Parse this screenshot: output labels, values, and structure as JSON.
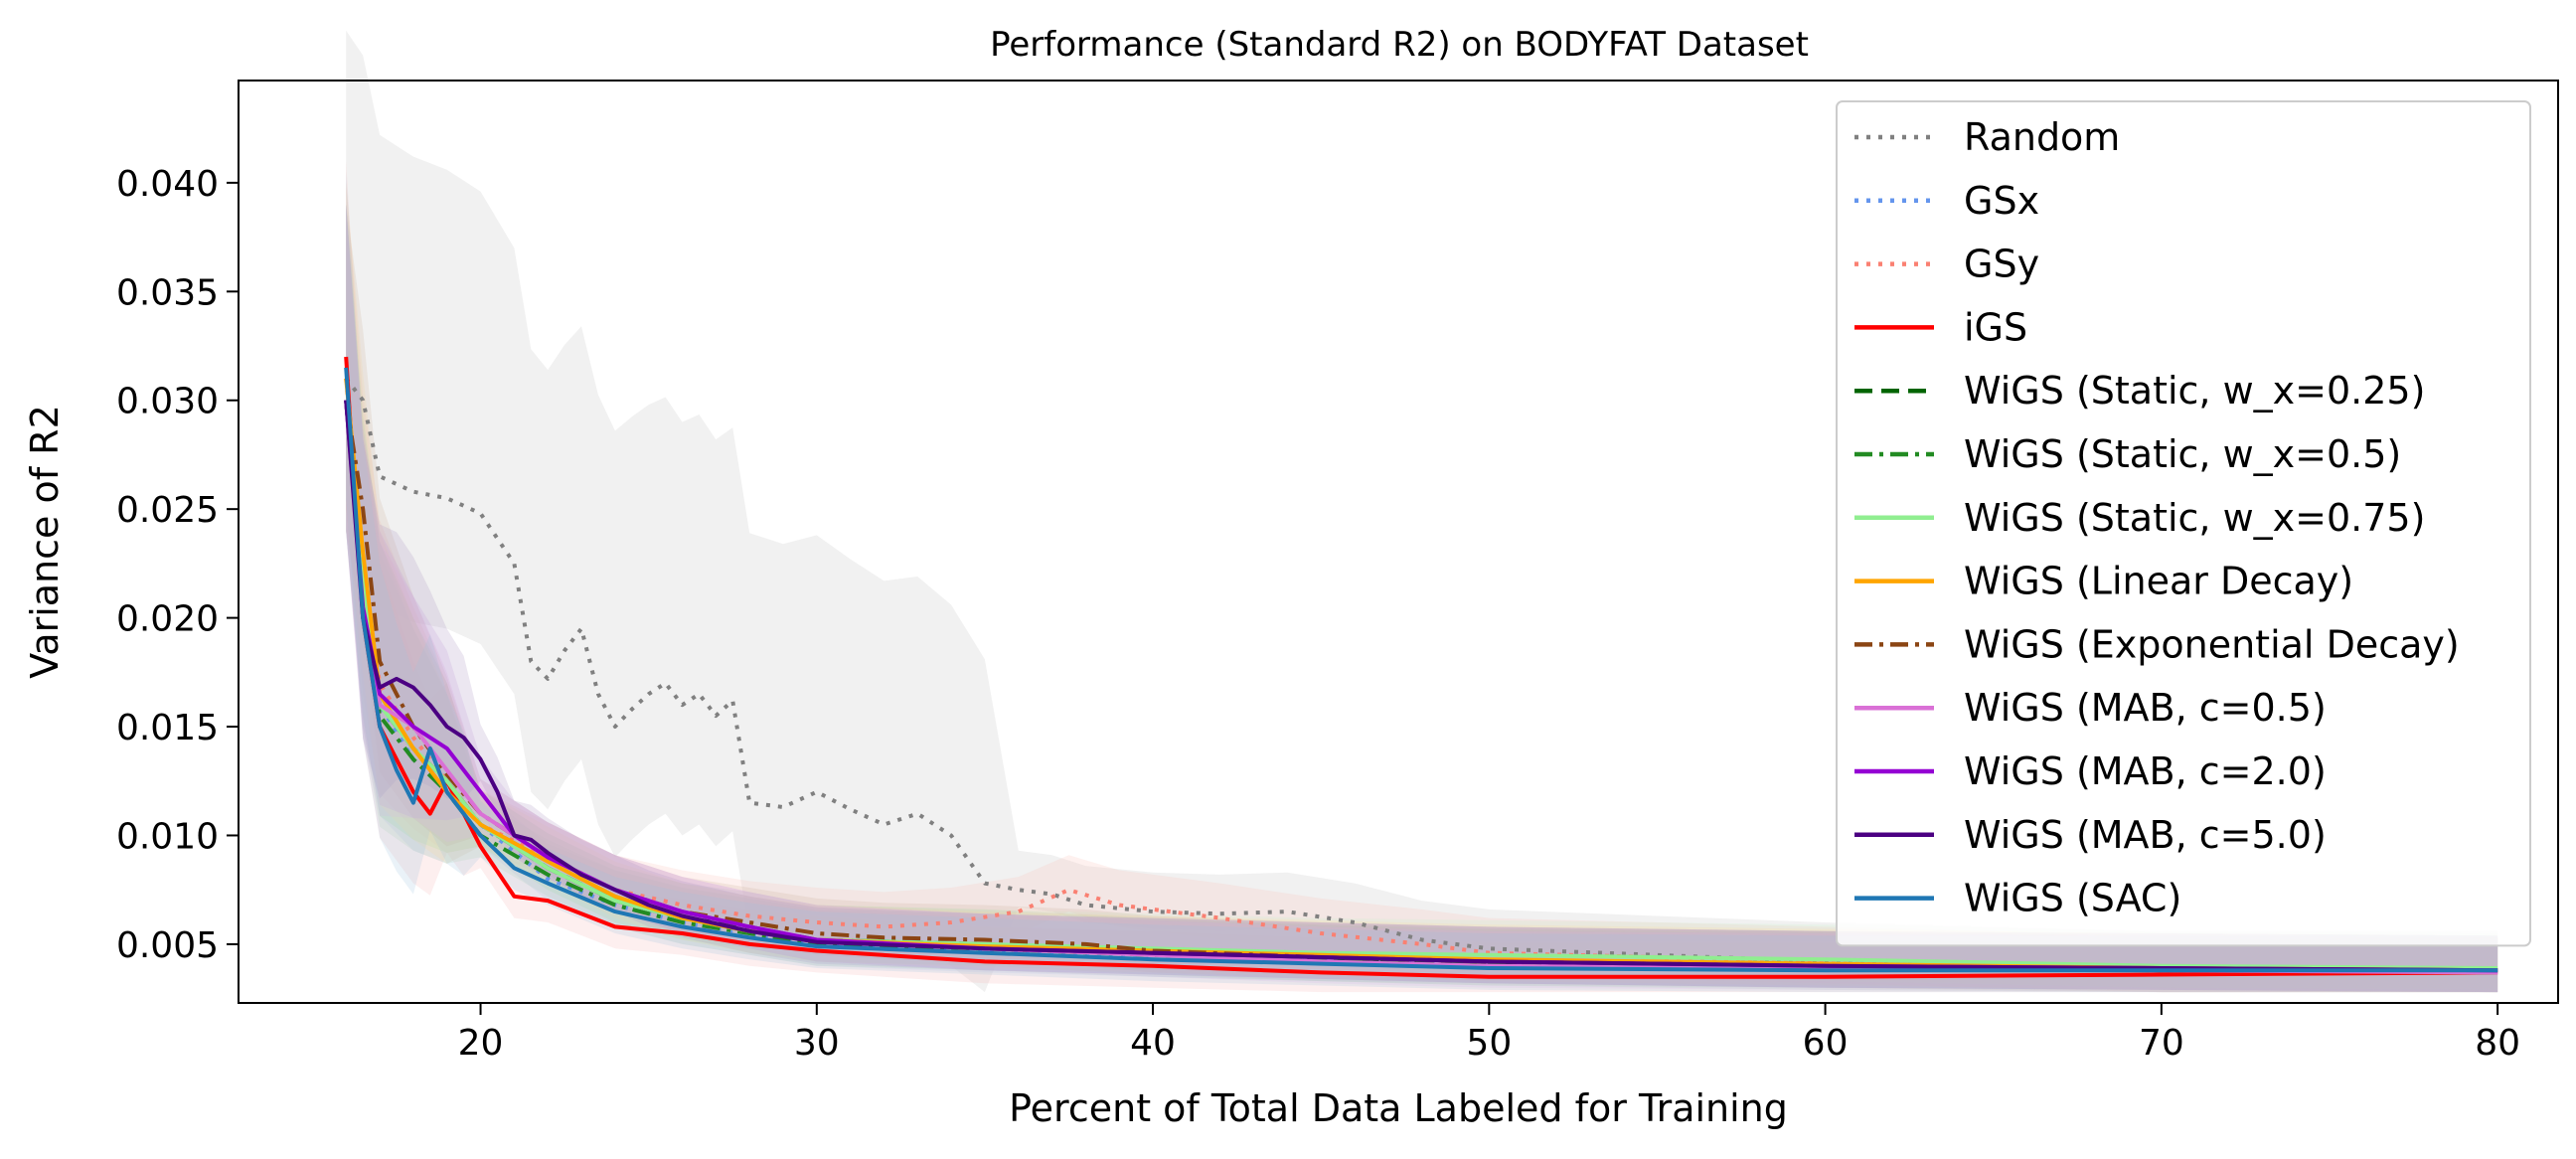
{
  "chart_data": {
    "type": "line",
    "title": "Performance (Standard R2) on BODYFAT Dataset",
    "xlabel": "Percent of Total Data Labeled for Training",
    "ylabel": "Variance of R2",
    "xlim": [
      12.8,
      81.8
    ],
    "ylim": [
      0.0023,
      0.0447
    ],
    "xticks": [
      "20",
      "30",
      "40",
      "50",
      "60",
      "70",
      "80"
    ],
    "yticks": [
      "0.005",
      "0.010",
      "0.015",
      "0.020",
      "0.025",
      "0.030",
      "0.035",
      "0.040"
    ],
    "grid": false,
    "legend_position": "upper-right",
    "series": [
      {
        "name": "Random",
        "color": "#808080",
        "dash": "dotted",
        "band": "#d9d9d9",
        "x": [
          16,
          16.5,
          17,
          18,
          19,
          20,
          21,
          21.5,
          22,
          22.5,
          23,
          23.5,
          24,
          24.5,
          25,
          25.5,
          26,
          26.5,
          27,
          27.5,
          28,
          29,
          30,
          31,
          32,
          33,
          34,
          35,
          36,
          37,
          38,
          40,
          42,
          44,
          46,
          48,
          50,
          55,
          60,
          65,
          70,
          80
        ],
        "y": [
          0.031,
          0.03,
          0.0265,
          0.0258,
          0.0255,
          0.0248,
          0.0225,
          0.018,
          0.0172,
          0.0185,
          0.0195,
          0.0165,
          0.015,
          0.0158,
          0.0165,
          0.017,
          0.016,
          0.0165,
          0.0155,
          0.0162,
          0.0115,
          0.0113,
          0.012,
          0.0112,
          0.0105,
          0.011,
          0.01,
          0.0078,
          0.0075,
          0.0073,
          0.0068,
          0.0065,
          0.0064,
          0.0065,
          0.006,
          0.0052,
          0.0048,
          0.0045,
          0.0042,
          0.004,
          0.0038,
          0.0038
        ]
      },
      {
        "name": "GSx",
        "color": "#6495ed",
        "dash": "dotted",
        "band": "#b0c8f0",
        "x": [
          16,
          16.5,
          17,
          18,
          19,
          20,
          22,
          24,
          26,
          28,
          30,
          35,
          40,
          45,
          50,
          60,
          70,
          80
        ],
        "y": [
          0.03,
          0.021,
          0.016,
          0.0135,
          0.012,
          0.0105,
          0.008,
          0.0068,
          0.006,
          0.0055,
          0.005,
          0.0047,
          0.0045,
          0.0043,
          0.0042,
          0.004,
          0.0039,
          0.0038
        ]
      },
      {
        "name": "GSy",
        "color": "#fa8072",
        "dash": "dotted",
        "band": "#f9c0b8",
        "x": [
          16,
          16.5,
          17,
          18,
          19,
          20,
          22,
          24,
          26,
          28,
          30,
          32,
          34,
          36,
          37.5,
          39,
          42,
          45,
          48,
          50,
          55,
          60,
          65,
          70,
          80
        ],
        "y": [
          0.031,
          0.022,
          0.017,
          0.0145,
          0.0125,
          0.0105,
          0.009,
          0.0075,
          0.0068,
          0.0063,
          0.006,
          0.0058,
          0.006,
          0.0065,
          0.0075,
          0.0068,
          0.0062,
          0.0055,
          0.005,
          0.0046,
          0.0044,
          0.0042,
          0.004,
          0.0038,
          0.0037
        ]
      },
      {
        "name": "iGS",
        "color": "#ff0000",
        "dash": "solid",
        "band": "#f7b4b4",
        "x": [
          16,
          16.5,
          17,
          17.5,
          18,
          18.5,
          19,
          19.5,
          20,
          21,
          22,
          24,
          26,
          28,
          30,
          35,
          40,
          45,
          50,
          60,
          70,
          80
        ],
        "y": [
          0.032,
          0.02,
          0.015,
          0.0135,
          0.012,
          0.011,
          0.0125,
          0.011,
          0.0095,
          0.0072,
          0.007,
          0.0058,
          0.0055,
          0.005,
          0.0047,
          0.0042,
          0.004,
          0.0037,
          0.0035,
          0.0035,
          0.0036,
          0.0037
        ]
      },
      {
        "name": "WiGS (Static, w_x=0.25)",
        "color": "#006400",
        "dash": "dashed",
        "band": "#a8cfa8",
        "x": [
          16,
          16.5,
          17,
          18,
          19,
          20,
          22,
          24,
          26,
          28,
          30,
          35,
          40,
          45,
          50,
          60,
          70,
          80
        ],
        "y": [
          0.03,
          0.021,
          0.016,
          0.014,
          0.0125,
          0.0105,
          0.0085,
          0.007,
          0.0062,
          0.0058,
          0.0052,
          0.005,
          0.0046,
          0.0043,
          0.0041,
          0.004,
          0.0039,
          0.0038
        ]
      },
      {
        "name": "WiGS (Static, w_x=0.5)",
        "color": "#228b22",
        "dash": "dashdot",
        "band": "#b0d8b0",
        "x": [
          16,
          16.5,
          17,
          18,
          19,
          20,
          22,
          24,
          26,
          28,
          30,
          35,
          40,
          45,
          50,
          60,
          70,
          80
        ],
        "y": [
          0.03,
          0.0205,
          0.0155,
          0.0135,
          0.012,
          0.01,
          0.0082,
          0.0068,
          0.006,
          0.0055,
          0.005,
          0.0048,
          0.0045,
          0.0043,
          0.0041,
          0.0039,
          0.0038,
          0.0038
        ]
      },
      {
        "name": "WiGS (Static, w_x=0.75)",
        "color": "#90ee90",
        "dash": "solid",
        "band": "#c8f2c8",
        "x": [
          16,
          16.5,
          17,
          18,
          19,
          20,
          22,
          24,
          26,
          28,
          30,
          35,
          40,
          45,
          50,
          60,
          70,
          80
        ],
        "y": [
          0.03,
          0.0215,
          0.016,
          0.014,
          0.0125,
          0.0105,
          0.0085,
          0.007,
          0.0062,
          0.0056,
          0.0052,
          0.005,
          0.0048,
          0.0046,
          0.0045,
          0.0043,
          0.004,
          0.0039
        ]
      },
      {
        "name": "WiGS (Linear Decay)",
        "color": "#ffa500",
        "dash": "solid",
        "band": "#fcd9a0",
        "x": [
          16,
          16.5,
          17,
          18,
          19,
          20,
          22,
          24,
          26,
          28,
          30,
          35,
          40,
          45,
          50,
          60,
          70,
          80
        ],
        "y": [
          0.031,
          0.023,
          0.0165,
          0.014,
          0.012,
          0.0105,
          0.0088,
          0.0072,
          0.0062,
          0.0056,
          0.0052,
          0.0049,
          0.0047,
          0.0045,
          0.0043,
          0.0041,
          0.0039,
          0.0038
        ]
      },
      {
        "name": "WiGS (Exponential Decay)",
        "color": "#8b4513",
        "dash": "dashdot",
        "band": "#cfb09a",
        "x": [
          16,
          16.5,
          17,
          18,
          19,
          20,
          22,
          24,
          26,
          28,
          30,
          32,
          35,
          38,
          40,
          45,
          50,
          60,
          70,
          80
        ],
        "y": [
          0.03,
          0.025,
          0.018,
          0.015,
          0.0128,
          0.011,
          0.009,
          0.0075,
          0.0065,
          0.006,
          0.0055,
          0.0053,
          0.0052,
          0.005,
          0.0047,
          0.0044,
          0.0042,
          0.004,
          0.0038,
          0.0037
        ]
      },
      {
        "name": "WiGS (MAB, c=0.5)",
        "color": "#da70d6",
        "dash": "solid",
        "band": "#e8b8e6",
        "x": [
          16,
          16.5,
          17,
          18,
          19,
          20,
          22,
          24,
          26,
          28,
          30,
          35,
          40,
          45,
          50,
          60,
          70,
          80
        ],
        "y": [
          0.03,
          0.02,
          0.016,
          0.015,
          0.013,
          0.011,
          0.009,
          0.0075,
          0.0065,
          0.0058,
          0.0052,
          0.0048,
          0.0045,
          0.0042,
          0.004,
          0.0039,
          0.0038,
          0.0037
        ]
      },
      {
        "name": "WiGS (MAB, c=2.0)",
        "color": "#9400d3",
        "dash": "solid",
        "band": "#c89ae0",
        "x": [
          16,
          16.5,
          17,
          18,
          19,
          20,
          21,
          22,
          24,
          26,
          28,
          30,
          35,
          40,
          45,
          50,
          60,
          70,
          80
        ],
        "y": [
          0.03,
          0.0205,
          0.0165,
          0.015,
          0.014,
          0.012,
          0.01,
          0.009,
          0.0075,
          0.0065,
          0.0058,
          0.0052,
          0.0048,
          0.0046,
          0.0044,
          0.0042,
          0.004,
          0.0039,
          0.0038
        ]
      },
      {
        "name": "WiGS (MAB, c=5.0)",
        "color": "#4b0082",
        "dash": "solid",
        "band": "#a890c0",
        "x": [
          16,
          16.5,
          17,
          17.5,
          18,
          18.5,
          19,
          19.5,
          20,
          20.5,
          21,
          21.5,
          22,
          23,
          24,
          25,
          26,
          28,
          30,
          35,
          40,
          45,
          50,
          60,
          70,
          80
        ],
        "y": [
          0.03,
          0.02,
          0.0168,
          0.0172,
          0.0168,
          0.016,
          0.015,
          0.0145,
          0.0135,
          0.012,
          0.01,
          0.0098,
          0.0092,
          0.0082,
          0.0075,
          0.0068,
          0.0063,
          0.0056,
          0.0051,
          0.0048,
          0.0046,
          0.0044,
          0.0042,
          0.004,
          0.0039,
          0.0038
        ]
      },
      {
        "name": "WiGS (SAC)",
        "color": "#1f77b4",
        "dash": "solid",
        "band": "#a0c4e0",
        "x": [
          16,
          16.5,
          17,
          17.5,
          18,
          18.5,
          19,
          19.5,
          20,
          21,
          22,
          24,
          26,
          28,
          30,
          35,
          40,
          45,
          50,
          60,
          70,
          80
        ],
        "y": [
          0.0315,
          0.02,
          0.015,
          0.013,
          0.0115,
          0.014,
          0.012,
          0.011,
          0.01,
          0.0085,
          0.0078,
          0.0065,
          0.0058,
          0.0053,
          0.0049,
          0.0046,
          0.0043,
          0.0041,
          0.0039,
          0.0038,
          0.0038,
          0.0038
        ]
      }
    ]
  }
}
